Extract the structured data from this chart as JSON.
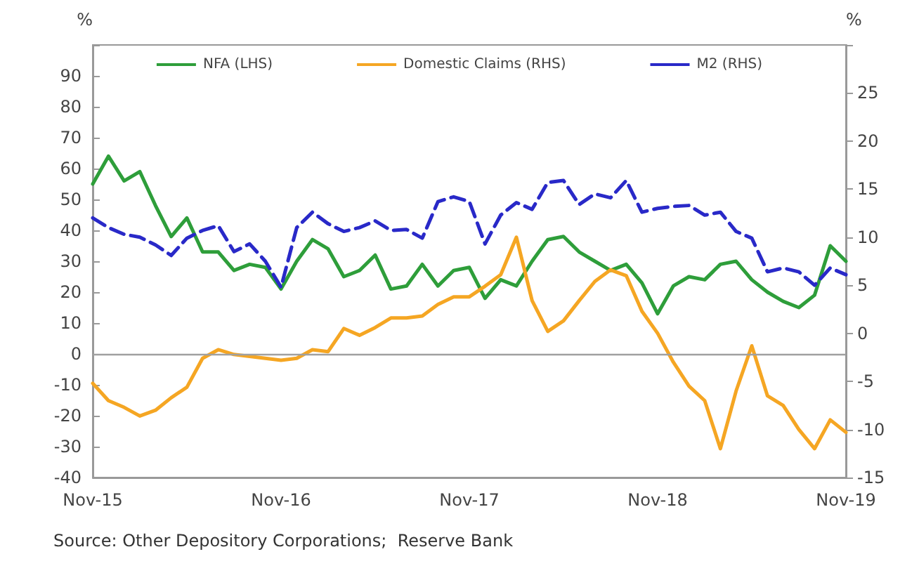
{
  "chart_data": {
    "type": "line",
    "ylabel": "%",
    "y2label": "%",
    "categories": [
      "Nov-15",
      null,
      null,
      null,
      null,
      null,
      null,
      null,
      null,
      null,
      null,
      null,
      "Nov-16",
      null,
      null,
      null,
      null,
      null,
      null,
      null,
      null,
      null,
      null,
      null,
      "Nov-17",
      null,
      null,
      null,
      null,
      null,
      null,
      null,
      null,
      null,
      null,
      null,
      "Nov-18",
      null,
      null,
      null,
      null,
      null,
      null,
      null,
      null,
      null,
      null,
      null,
      "Nov-19"
    ],
    "series": [
      {
        "name": "NFA (LHS)",
        "color": "#2e9e3a",
        "line_style": "solid",
        "values": [
          55,
          64,
          56,
          59,
          48,
          38,
          44,
          33,
          33,
          27,
          29,
          28,
          21,
          30,
          37,
          34,
          25,
          27,
          32,
          21,
          22,
          29,
          22,
          27,
          28,
          18,
          24,
          22,
          30,
          37,
          38,
          33,
          30,
          27,
          29,
          23,
          13,
          22,
          25,
          24,
          29,
          30,
          24,
          20,
          17,
          15,
          19,
          35,
          30
        ]
      },
      {
        "name": "Domestic Claims (RHS)",
        "color": "#f5a623",
        "axis": "y2",
        "line_style": "solid",
        "values": [
          -5.2,
          -7,
          -7.7,
          -8.6,
          -8,
          -6.7,
          -5.6,
          -2.6,
          -1.7,
          -2.2,
          -2.4,
          -2.6,
          -2.8,
          -2.6,
          -1.7,
          -1.9,
          0.5,
          -0.2,
          0.6,
          1.6,
          1.6,
          1.8,
          3,
          3.8,
          3.8,
          4.9,
          6.1,
          10,
          3.4,
          0.2,
          1.3,
          3.4,
          5.4,
          6.6,
          6,
          2.3,
          0,
          -3,
          -5.5,
          -7,
          -12,
          -6,
          -1.3,
          -6.5,
          -7.5,
          -10,
          -12,
          -9,
          -10.3
        ]
      },
      {
        "name": "M2 (RHS)",
        "color": "#2929c8",
        "axis": "y2",
        "line_style": "dashed",
        "values": [
          12,
          11,
          10.3,
          10,
          9.2,
          8.1,
          9.9,
          10.7,
          11.2,
          8.5,
          9.3,
          7.5,
          4.8,
          11,
          12.6,
          11.4,
          10.6,
          11,
          11.7,
          10.7,
          10.8,
          9.9,
          13.7,
          14.2,
          13.7,
          9.3,
          12.3,
          13.6,
          12.9,
          15.7,
          15.9,
          13.4,
          14.5,
          14.1,
          15.9,
          12.6,
          13,
          13.2,
          13.3,
          12.3,
          12.6,
          10.6,
          9.9,
          6.4,
          6.8,
          6.4,
          5,
          6.8,
          6.1
        ]
      }
    ],
    "ylim": [
      -40,
      100
    ],
    "yticks": [
      -40,
      -30,
      -20,
      -10,
      0,
      10,
      20,
      30,
      40,
      50,
      60,
      70,
      80,
      90,
      {
        "value": 100,
        "label": null
      }
    ],
    "y2lim": [
      -15,
      30
    ],
    "y2ticks": [
      -15,
      -10,
      -5,
      0,
      5,
      10,
      15,
      20,
      25,
      {
        "value": 30,
        "label": null
      }
    ],
    "ref_lines": [
      {
        "axis": "y",
        "value": 0,
        "color": "#a0a0a0"
      }
    ],
    "grid": false,
    "legend": "top",
    "marker": "none",
    "annotations": [
      "Source: Other Depository Corporations;  Reserve Bank"
    ]
  }
}
